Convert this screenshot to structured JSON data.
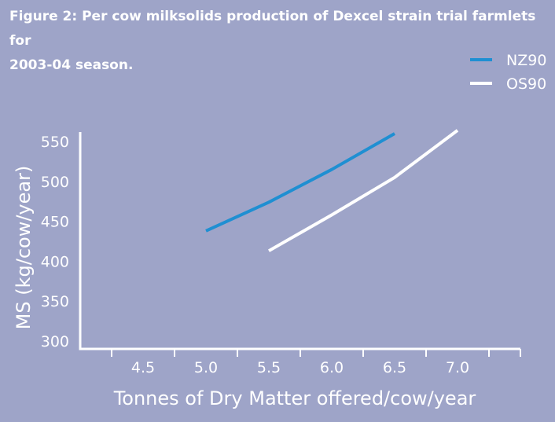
{
  "figure": {
    "title_line1": "Figure 2:  Per cow milksolids production of Dexcel strain trial farmlets for",
    "title_line2": "2003-04 season."
  },
  "chart_data": {
    "type": "line",
    "title": "Per cow milksolids production of Dexcel strain trial farmlets for 2003-04 season.",
    "xlabel": "Tonnes of Dry Matter offered/cow/year",
    "ylabel": "MS (kg/cow/year)",
    "xlim": [
      4.0,
      7.5
    ],
    "ylim": [
      290,
      560
    ],
    "x_ticks": [
      "4.5",
      "5.0",
      "5.5",
      "6.0",
      "6.5",
      "7.0"
    ],
    "y_ticks": [
      "300",
      "350",
      "400",
      "450",
      "500",
      "550"
    ],
    "legend_position": "top-right",
    "series": [
      {
        "name": "NZ90",
        "color": "#1f8fd2",
        "x": [
          5.0,
          5.5,
          6.0,
          6.5
        ],
        "y": [
          438,
          474,
          515,
          560
        ]
      },
      {
        "name": "OS90",
        "color": "#ffffff",
        "x": [
          5.5,
          6.0,
          6.5,
          7.0
        ],
        "y": [
          413,
          458,
          505,
          564
        ]
      }
    ]
  }
}
